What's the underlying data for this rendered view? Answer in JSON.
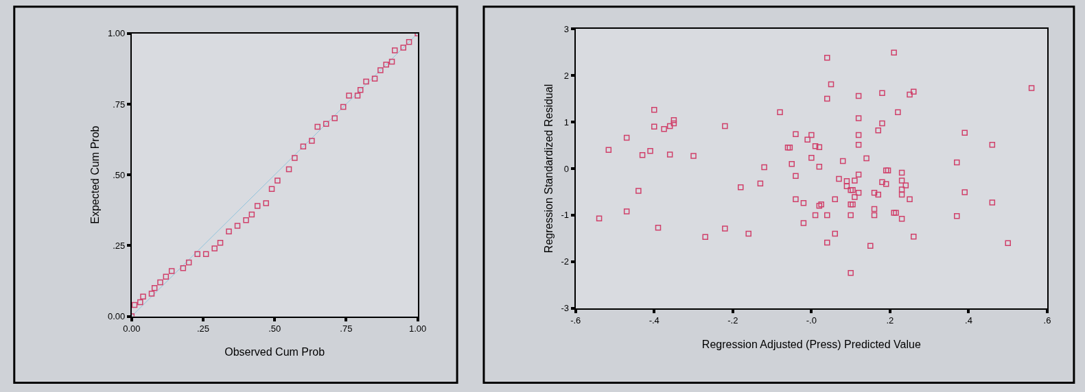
{
  "chart_data": [
    {
      "type": "scatter",
      "xlabel": "Observed Cum Prob",
      "ylabel": "Expected Cum Prob",
      "marker": "square",
      "grid": false,
      "xlim": [
        0,
        1
      ],
      "ylim": [
        0,
        1
      ],
      "xticks": [
        {
          "value": 0,
          "label": "0.00"
        },
        {
          "value": 0.25,
          "label": ".25"
        },
        {
          "value": 0.5,
          "label": ".50"
        },
        {
          "value": 0.75,
          "label": ".75"
        },
        {
          "value": 1,
          "label": "1.00"
        }
      ],
      "yticks": [
        {
          "value": 0,
          "label": "0.00"
        },
        {
          "value": 0.25,
          "label": ".25"
        },
        {
          "value": 0.5,
          "label": ".50"
        },
        {
          "value": 0.75,
          "label": ".75"
        },
        {
          "value": 1,
          "label": "1.00"
        }
      ],
      "series": [
        {
          "type": "line",
          "marker": "none",
          "color": "#8fc3dd",
          "x": [
            0,
            1
          ],
          "values": [
            0,
            1
          ]
        },
        {
          "color": "#d0406a",
          "x": [
            0.0,
            0.01,
            0.03,
            0.04,
            0.07,
            0.08,
            0.1,
            0.12,
            0.14,
            0.18,
            0.2,
            0.23,
            0.26,
            0.29,
            0.31,
            0.34,
            0.37,
            0.4,
            0.42,
            0.44,
            0.47,
            0.49,
            0.51,
            0.55,
            0.57,
            0.6,
            0.63,
            0.65,
            0.68,
            0.71,
            0.74,
            0.76,
            0.79,
            0.8,
            0.82,
            0.85,
            0.87,
            0.89,
            0.91,
            0.92,
            0.95,
            0.97,
            1.0
          ],
          "values": [
            0.0,
            0.04,
            0.05,
            0.07,
            0.08,
            0.1,
            0.12,
            0.14,
            0.16,
            0.17,
            0.19,
            0.22,
            0.22,
            0.24,
            0.26,
            0.3,
            0.32,
            0.34,
            0.36,
            0.39,
            0.4,
            0.45,
            0.48,
            0.52,
            0.56,
            0.6,
            0.62,
            0.67,
            0.68,
            0.7,
            0.74,
            0.78,
            0.78,
            0.8,
            0.83,
            0.84,
            0.87,
            0.89,
            0.9,
            0.94,
            0.95,
            0.97,
            1.0
          ]
        }
      ]
    },
    {
      "type": "scatter",
      "xlabel": "Regression Adjusted (Press) Predicted Value",
      "ylabel": "Regression Standardized Residual",
      "marker": "square",
      "grid": false,
      "xlim": [
        -0.6,
        0.6
      ],
      "ylim": [
        -3,
        3
      ],
      "xticks": [
        {
          "value": -0.6,
          "label": "-.6"
        },
        {
          "value": -0.4,
          "label": "-.4"
        },
        {
          "value": -0.2,
          "label": "-.2"
        },
        {
          "value": 0,
          "label": "-.0"
        },
        {
          "value": 0.2,
          "label": ".2"
        },
        {
          "value": 0.4,
          "label": ".4"
        },
        {
          "value": 0.6,
          "label": ".6"
        }
      ],
      "yticks": [
        -3,
        -2,
        -1,
        0,
        1,
        2,
        3
      ],
      "series": [
        {
          "color": "#d0406a",
          "x": [
            -0.54,
            -0.516,
            -0.47,
            -0.47,
            -0.43,
            -0.41,
            -0.4,
            -0.4,
            -0.44,
            -0.39,
            -0.375,
            -0.36,
            -0.35,
            -0.35,
            -0.36,
            -0.3,
            -0.22,
            -0.22,
            -0.27,
            -0.18,
            -0.16,
            -0.13,
            -0.12,
            -0.08,
            -0.06,
            -0.055,
            -0.04,
            -0.05,
            -0.04,
            -0.04,
            -0.02,
            -0.02,
            -0.01,
            0.0,
            0.0,
            0.01,
            0.02,
            0.02,
            0.025,
            0.01,
            0.02,
            0.04,
            0.04,
            0.04,
            0.05,
            0.04,
            0.06,
            0.06,
            0.07,
            0.08,
            0.09,
            0.09,
            0.1,
            0.105,
            0.1,
            0.105,
            0.1,
            0.1,
            0.11,
            0.11,
            0.12,
            0.12,
            0.12,
            0.12,
            0.12,
            0.12,
            0.14,
            0.15,
            0.16,
            0.16,
            0.17,
            0.16,
            0.17,
            0.18,
            0.18,
            0.18,
            0.19,
            0.195,
            0.19,
            0.21,
            0.215,
            0.21,
            0.22,
            0.23,
            0.23,
            0.23,
            0.23,
            0.23,
            0.24,
            0.25,
            0.26,
            0.25,
            0.26,
            0.37,
            0.37,
            0.39,
            0.39,
            0.46,
            0.46,
            0.5,
            0.56
          ],
          "values": [
            -1.07,
            0.4,
            0.66,
            -0.92,
            0.29,
            0.38,
            1.26,
            0.9,
            -0.48,
            -1.27,
            0.85,
            0.91,
            1.04,
            0.97,
            0.3,
            0.27,
            0.91,
            -1.29,
            -1.47,
            -0.4,
            -1.4,
            -0.32,
            0.03,
            1.21,
            0.45,
            0.45,
            0.74,
            0.1,
            -0.16,
            -0.66,
            -0.74,
            -1.17,
            0.62,
            0.72,
            0.23,
            0.48,
            0.46,
            -0.8,
            -0.77,
            -1.0,
            0.04,
            -1.0,
            2.38,
            1.5,
            1.81,
            -1.59,
            -1.4,
            -0.66,
            -0.22,
            0.16,
            -0.27,
            -0.38,
            -0.46,
            -0.46,
            -0.77,
            -0.77,
            -1.0,
            -2.24,
            -0.26,
            -0.61,
            -0.52,
            1.56,
            1.08,
            0.72,
            0.51,
            -0.13,
            0.22,
            -1.66,
            -0.52,
            -0.87,
            0.82,
            -1.0,
            -0.56,
            1.62,
            0.97,
            -0.29,
            -0.04,
            -0.04,
            -0.33,
            -0.95,
            -0.95,
            2.49,
            1.21,
            -0.09,
            -0.26,
            -0.45,
            -0.56,
            -1.08,
            -0.36,
            1.59,
            1.65,
            -0.66,
            -1.46,
            0.13,
            -1.02,
            0.77,
            -0.51,
            0.51,
            -0.73,
            -1.6,
            1.73
          ]
        }
      ]
    }
  ]
}
